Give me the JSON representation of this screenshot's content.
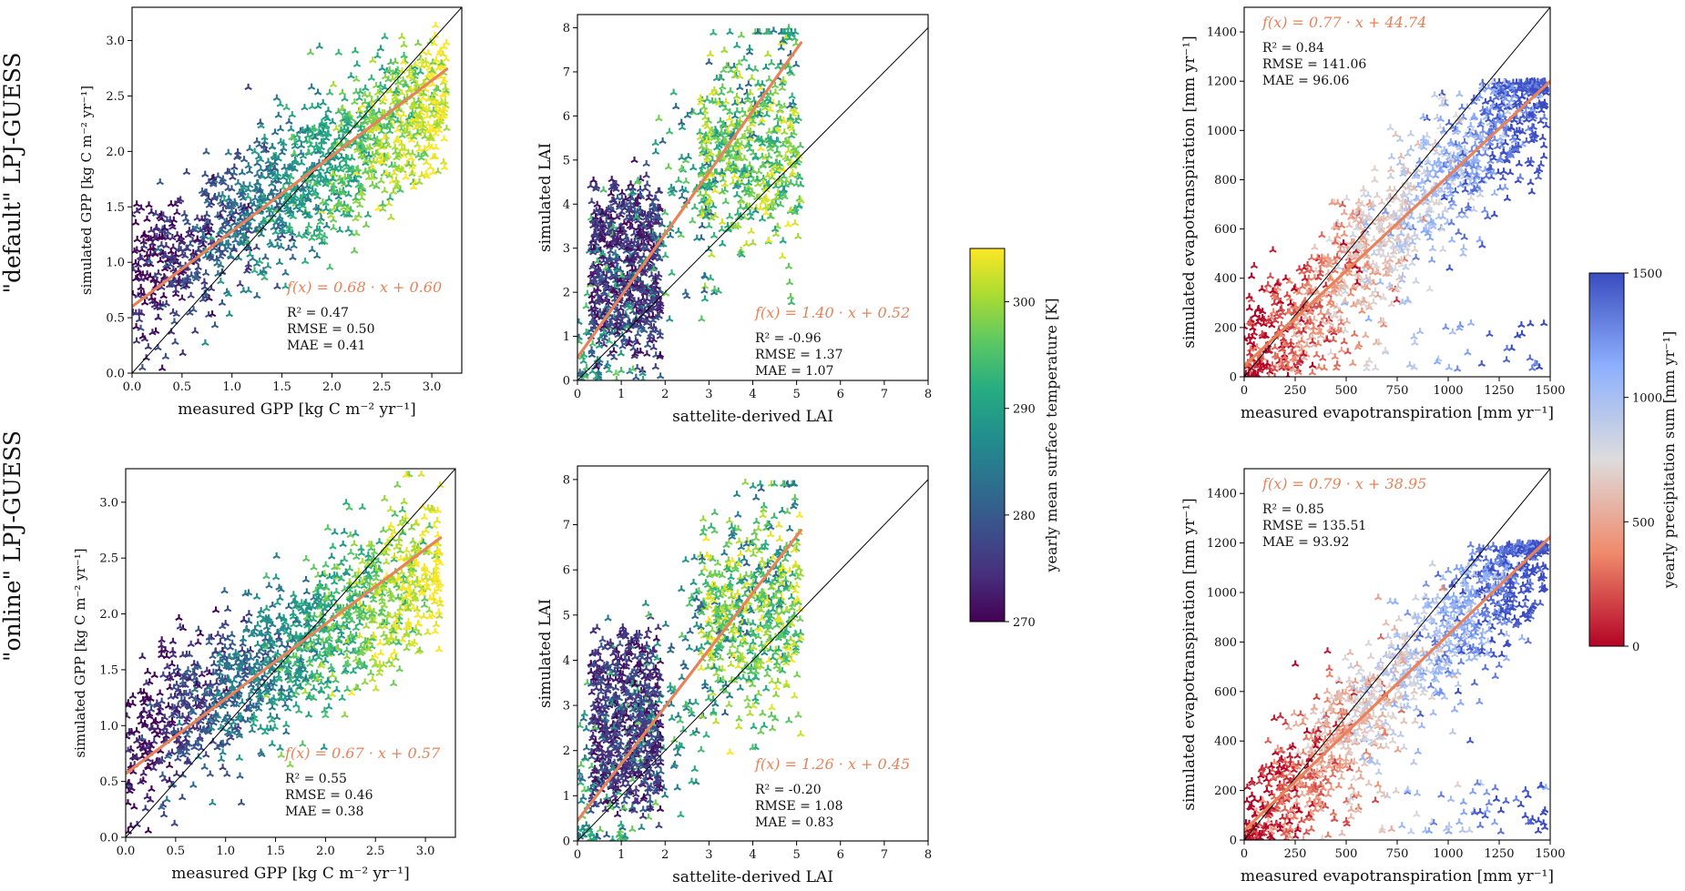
{
  "row_labels": [
    "\"default\" LPJ-GUESS",
    "\"online\" LPJ-GUESS"
  ],
  "colorbars": [
    {
      "label": "yearly mean surface temperature [K]",
      "ticks": [
        "270",
        "280",
        "290",
        "300"
      ],
      "range": [
        270,
        305
      ],
      "colormap": "viridis"
    },
    {
      "label": "yearly precipitation sum [mm yr⁻¹]",
      "ticks": [
        "0",
        "500",
        "1000",
        "1500"
      ],
      "range": [
        0,
        1500
      ],
      "colormap": "coolwarm_reversed"
    }
  ],
  "chart_data": [
    {
      "id": "default-gpp",
      "type": "scatter",
      "xlabel": "measured GPP [kg C m⁻² yr⁻¹]",
      "ylabel": "simulated GPP [kg C m⁻² yr⁻¹]",
      "xlim": [
        0,
        3.3
      ],
      "ylim": [
        0,
        3.3
      ],
      "xticks": [
        "0.0",
        "0.5",
        "1.0",
        "1.5",
        "2.0",
        "2.5",
        "3.0"
      ],
      "yticks": [
        "0.0",
        "0.5",
        "1.0",
        "1.5",
        "2.0",
        "2.5",
        "3.0"
      ],
      "fit": {
        "label": "f(x) = 0.68 · x + 0.60",
        "slope": 0.68,
        "intercept": 0.6,
        "x_range": [
          0,
          3.15
        ]
      },
      "stats": [
        "R² = 0.47",
        "RMSE = 0.50",
        "MAE = 0.41"
      ],
      "color_by": "temperature"
    },
    {
      "id": "default-lai",
      "type": "scatter",
      "xlabel": "sattelite-derived LAI",
      "ylabel": "simulated LAI",
      "xlim": [
        0,
        8
      ],
      "ylim": [
        0,
        8.3
      ],
      "xticks": [
        "0",
        "1",
        "2",
        "3",
        "4",
        "5",
        "6",
        "7",
        "8"
      ],
      "yticks": [
        "0",
        "1",
        "2",
        "3",
        "4",
        "5",
        "6",
        "7",
        "8"
      ],
      "fit": {
        "label": "f(x) = 1.40 · x + 0.52",
        "slope": 1.4,
        "intercept": 0.52,
        "x_range": [
          0,
          5.1
        ]
      },
      "stats": [
        "R² = -0.96",
        "RMSE = 1.37",
        "MAE = 1.07"
      ],
      "color_by": "temperature"
    },
    {
      "id": "default-et",
      "type": "scatter",
      "xlabel": "measured evapotranspiration [mm yr⁻¹]",
      "ylabel": "simulated evapotranspiration [mm yr⁻¹]",
      "xlim": [
        0,
        1500
      ],
      "ylim": [
        0,
        1500
      ],
      "xticks": [
        "0",
        "250",
        "500",
        "750",
        "1000",
        "1250",
        "1500"
      ],
      "yticks": [
        "0",
        "200",
        "400",
        "600",
        "800",
        "1000",
        "1200",
        "1400"
      ],
      "fit": {
        "label": "f(x) = 0.77 · x + 44.74",
        "slope": 0.77,
        "intercept": 44.74,
        "x_range": [
          0,
          1500
        ]
      },
      "stats": [
        "R² = 0.84",
        "RMSE = 141.06",
        "MAE = 96.06"
      ],
      "color_by": "precipitation"
    },
    {
      "id": "online-gpp",
      "type": "scatter",
      "xlabel": "measured GPP [kg C m⁻² yr⁻¹]",
      "ylabel": "simulated GPP [kg C m⁻² yr⁻¹]",
      "xlim": [
        0,
        3.3
      ],
      "ylim": [
        0,
        3.3
      ],
      "xticks": [
        "0.0",
        "0.5",
        "1.0",
        "1.5",
        "2.0",
        "2.5",
        "3.0"
      ],
      "yticks": [
        "0.0",
        "0.5",
        "1.0",
        "1.5",
        "2.0",
        "2.5",
        "3.0"
      ],
      "fit": {
        "label": "f(x) = 0.67 · x + 0.57",
        "slope": 0.67,
        "intercept": 0.57,
        "x_range": [
          0,
          3.15
        ]
      },
      "stats": [
        "R² = 0.55",
        "RMSE = 0.46",
        "MAE = 0.38"
      ],
      "color_by": "temperature"
    },
    {
      "id": "online-lai",
      "type": "scatter",
      "xlabel": "sattelite-derived LAI",
      "ylabel": "simulated LAI",
      "xlim": [
        0,
        8
      ],
      "ylim": [
        0,
        8.3
      ],
      "xticks": [
        "0",
        "1",
        "2",
        "3",
        "4",
        "5",
        "6",
        "7",
        "8"
      ],
      "yticks": [
        "0",
        "1",
        "2",
        "3",
        "4",
        "5",
        "6",
        "7",
        "8"
      ],
      "fit": {
        "label": "f(x) = 1.26 · x + 0.45",
        "slope": 1.26,
        "intercept": 0.45,
        "x_range": [
          0,
          5.1
        ]
      },
      "stats": [
        "R² = -0.20",
        "RMSE = 1.08",
        "MAE = 0.83"
      ],
      "color_by": "temperature"
    },
    {
      "id": "online-et",
      "type": "scatter",
      "xlabel": "measured evapotranspiration [mm yr⁻¹]",
      "ylabel": "simulated evapotranspiration [mm yr⁻¹]",
      "xlim": [
        0,
        1500
      ],
      "ylim": [
        0,
        1500
      ],
      "xticks": [
        "0",
        "250",
        "500",
        "750",
        "1000",
        "1250",
        "1500"
      ],
      "yticks": [
        "0",
        "200",
        "400",
        "600",
        "800",
        "1000",
        "1200",
        "1400"
      ],
      "fit": {
        "label": "f(x) = 0.79 · x + 38.95",
        "slope": 0.79,
        "intercept": 38.95,
        "x_range": [
          0,
          1500
        ]
      },
      "stats": [
        "R² = 0.85",
        "RMSE = 135.51",
        "MAE = 93.92"
      ],
      "color_by": "precipitation"
    }
  ]
}
